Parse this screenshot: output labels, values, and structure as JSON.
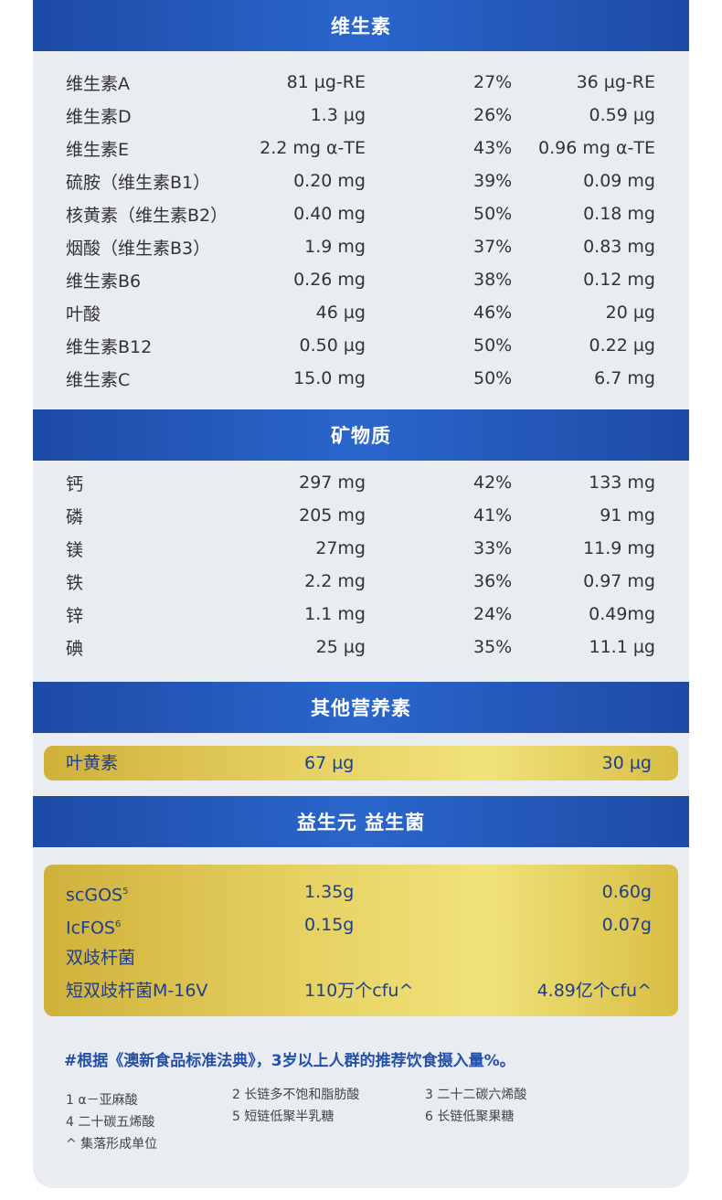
{
  "sections": {
    "vitamins": "维生素",
    "minerals": "矿物质",
    "others": "其他营养素",
    "probiotics": "益生元 益生菌"
  },
  "vitamins": [
    {
      "name": "维生素A",
      "amount": "81 µg-RE",
      "pct": "27%",
      "child": "36 µg-RE"
    },
    {
      "name": "维生素D",
      "amount": "1.3 µg",
      "pct": "26%",
      "child": "0.59 µg"
    },
    {
      "name": "维生素E",
      "amount": "2.2 mg α-TE",
      "pct": "43%",
      "child": "0.96 mg α-TE"
    },
    {
      "name": "硫胺（维生素B1）",
      "amount": "0.20 mg",
      "pct": "39%",
      "child": "0.09 mg"
    },
    {
      "name": "核黄素（维生素B2）",
      "amount": "0.40 mg",
      "pct": "50%",
      "child": "0.18 mg"
    },
    {
      "name": "烟酸（维生素B3）",
      "amount": "1.9 mg",
      "pct": "37%",
      "child": "0.83 mg"
    },
    {
      "name": "维生素B6",
      "amount": "0.26 mg",
      "pct": "38%",
      "child": "0.12 mg"
    },
    {
      "name": "叶酸",
      "amount": "46 µg",
      "pct": "46%",
      "child": "20 µg"
    },
    {
      "name": "维生素B12",
      "amount": "0.50 µg",
      "pct": "50%",
      "child": "0.22 µg"
    },
    {
      "name": "维生素C",
      "amount": "15.0 mg",
      "pct": "50%",
      "child": "6.7 mg"
    }
  ],
  "minerals": [
    {
      "name": "钙",
      "amount": "297 mg",
      "pct": "42%",
      "child": "133 mg"
    },
    {
      "name": "磷",
      "amount": "205 mg",
      "pct": "41%",
      "child": "91 mg"
    },
    {
      "name": "镁",
      "amount": "27mg",
      "pct": "33%",
      "child": "11.9 mg"
    },
    {
      "name": "铁",
      "amount": "2.2 mg",
      "pct": "36%",
      "child": "0.97 mg"
    },
    {
      "name": "锌",
      "amount": "1.1 mg",
      "pct": "24%",
      "child": "0.49mg"
    },
    {
      "name": "碘",
      "amount": "25 µg",
      "pct": "35%",
      "child": "11.1 µg"
    }
  ],
  "others": [
    {
      "name": "叶黄素",
      "amount": "67 µg",
      "child": "30 µg"
    }
  ],
  "probiotics": [
    {
      "name": "scGOS",
      "sup": "5",
      "amount": "1.35g",
      "child": "0.60g"
    },
    {
      "name": "IcFOS",
      "sup": "6",
      "amount": "0.15g",
      "child": "0.07g"
    },
    {
      "name": "双歧杆菌",
      "sup": "",
      "amount": "",
      "child": ""
    },
    {
      "name": "短双歧杆菌M-16V",
      "sup": "",
      "amount": "110万个cfu^",
      "child": "4.89亿个cfu^"
    }
  ],
  "note": "#根据《澳新食品标准法典》，3岁以上人群的推荐饮食摄入量%。",
  "footnotes": {
    "f1": "1 α－亚麻酸",
    "f2": "2 长链多不饱和脂肪酸",
    "f3": "3 二十二碳六烯酸",
    "f4": "4 二十碳五烯酸",
    "f5": "5 短链低聚半乳糖",
    "f6": "6 长链低聚果糖",
    "f7": "^ 集落形成单位"
  }
}
